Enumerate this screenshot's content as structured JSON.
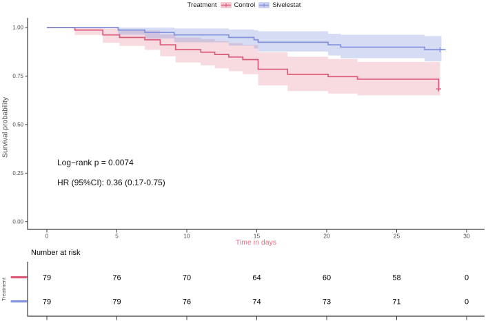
{
  "chart_data": {
    "type": "line",
    "subtype": "kaplan-meier-step-with-ci",
    "legend_title": "Treatment",
    "legend_position": "top",
    "xlabel": "Time in days",
    "ylabel": "Survival probability",
    "x_ticks": [
      0,
      5,
      10,
      15,
      20,
      25,
      30
    ],
    "y_ticks": [
      0,
      0.25,
      0.5,
      0.75,
      1
    ],
    "y_tick_labels": [
      "0.00",
      "0.25",
      "0.50",
      "0.75",
      "1.00"
    ],
    "xlim": [
      0,
      30
    ],
    "ylim": [
      0,
      1
    ],
    "grid": false,
    "colors": {
      "control": "#DB5A78",
      "sivelestat": "#8191DB",
      "axis_text": "#4D4D4D",
      "axis_line": "#3A3A3A",
      "xlabel_color": "#E56A87",
      "annotation_text": "#111111"
    },
    "annotations": {
      "logrank": "Log−rank p = 0.0074",
      "hr": "HR (95%CI): 0.36 (0.17-0.75)"
    },
    "series": [
      {
        "name": "Control",
        "color": "#DB5A78",
        "band_opacity": 0.22,
        "times": [
          0,
          2,
          4,
          5.2,
          7,
          8.1,
          9.2,
          11,
          12,
          13,
          14,
          15.1,
          17.2,
          20.1,
          22.2,
          28
        ],
        "surv": [
          1,
          0.987,
          0.962,
          0.949,
          0.937,
          0.911,
          0.886,
          0.873,
          0.861,
          0.848,
          0.835,
          0.785,
          0.759,
          0.747,
          0.734,
          0.684
        ],
        "ci_upper": [
          1,
          1,
          0.995,
          0.99,
          0.985,
          0.965,
          0.948,
          0.94,
          0.93,
          0.92,
          0.91,
          0.872,
          0.85,
          0.838,
          0.823,
          0.823
        ],
        "ci_lower": [
          1,
          0.962,
          0.922,
          0.905,
          0.885,
          0.852,
          0.82,
          0.805,
          0.79,
          0.775,
          0.76,
          0.702,
          0.673,
          0.66,
          0.651,
          0.651
        ],
        "line_end": 28,
        "band_end": 28.1,
        "censors": [
          {
            "time": 28,
            "surv": 0.684
          }
        ]
      },
      {
        "name": "Sivelestat",
        "color": "#8191DB",
        "band_opacity": 0.32,
        "times": [
          0,
          5.1,
          7,
          9.1,
          13,
          14.8,
          15.1,
          20.1,
          21,
          27
        ],
        "surv": [
          1,
          0.987,
          0.975,
          0.962,
          0.949,
          0.937,
          0.924,
          0.911,
          0.899,
          0.886
        ],
        "ci_upper": [
          1,
          1,
          1,
          0.995,
          0.99,
          0.986,
          0.981,
          0.968,
          0.963,
          0.956
        ],
        "ci_lower": [
          1,
          0.963,
          0.944,
          0.924,
          0.907,
          0.892,
          0.876,
          0.856,
          0.842,
          0.826
        ],
        "line_end": 28.5,
        "band_end": 28.2,
        "censors": [
          {
            "time": 28.1,
            "surv": 0.886
          }
        ]
      }
    ],
    "risk_table": {
      "title": "Number at risk",
      "axis_label": "Treatment",
      "times": [
        0,
        5,
        10,
        15,
        20,
        25,
        30
      ],
      "rows": [
        {
          "name": "Control",
          "color": "#DB5A78",
          "counts": [
            "79",
            "76",
            "70",
            "64",
            "60",
            "58",
            "0"
          ]
        },
        {
          "name": "Sivelestat",
          "color": "#8191DB",
          "counts": [
            "79",
            "79",
            "76",
            "74",
            "73",
            "71",
            "0"
          ]
        }
      ]
    }
  }
}
